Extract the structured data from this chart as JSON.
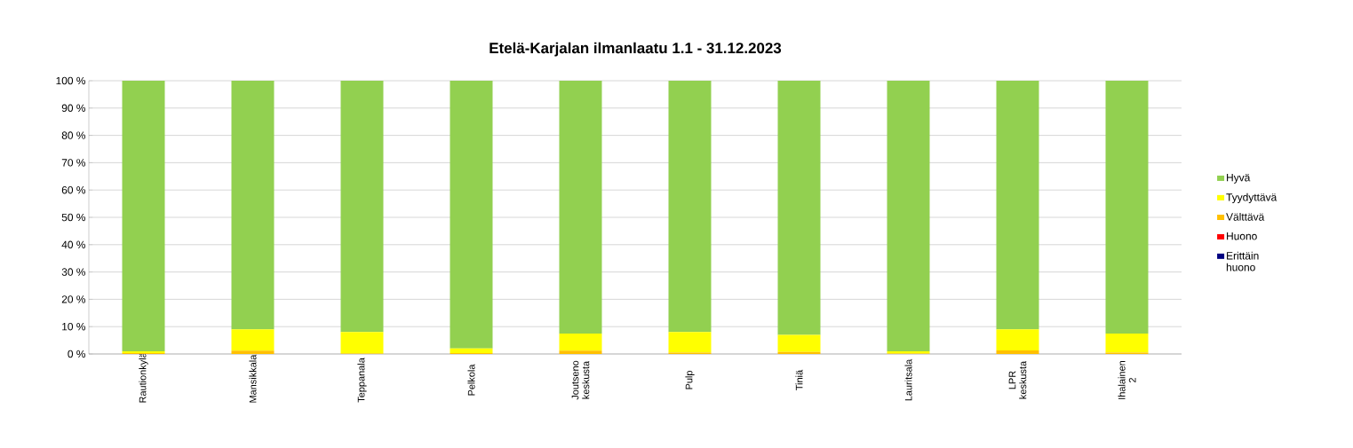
{
  "chart_data": {
    "type": "bar",
    "stacked": true,
    "title": "Etelä-Karjalan ilmanlaatu 1.1 - 31.12.2023",
    "categories": [
      "Rautionkylä",
      "Mansikkala",
      "Teppanala",
      "Pelkola",
      "Joutseno keskusta",
      "Pulp",
      "Tiniä",
      "Lauritsala",
      "LPR keskusta",
      "Ihalainen 2"
    ],
    "series": [
      {
        "name": "Erittäin huono",
        "color": "#000080",
        "values": [
          0,
          0,
          0,
          0,
          0,
          0,
          0,
          0,
          0,
          0
        ]
      },
      {
        "name": "Huono",
        "color": "#ff0000",
        "values": [
          0,
          0,
          0,
          0,
          0,
          0,
          0,
          0,
          0,
          0
        ]
      },
      {
        "name": "Välttävä",
        "color": "#ffc000",
        "values": [
          0.3,
          1.2,
          0.2,
          0.3,
          1.2,
          0.5,
          0.7,
          0.2,
          1.3,
          0.5
        ]
      },
      {
        "name": "Tyydyttävä",
        "color": "#ffff00",
        "values": [
          0.7,
          7.8,
          7.8,
          1.7,
          6.3,
          7.5,
          6.3,
          0.8,
          7.7,
          7.0
        ]
      },
      {
        "name": "Hyvä",
        "color": "#92d050",
        "values": [
          99,
          91,
          92,
          98,
          92.5,
          92,
          93,
          99,
          91,
          92.5
        ]
      }
    ],
    "ylim": [
      0,
      100
    ],
    "yticks": [
      {
        "value": 0,
        "label": "0 %"
      },
      {
        "value": 10,
        "label": "10 %"
      },
      {
        "value": 20,
        "label": "20 %"
      },
      {
        "value": 30,
        "label": "30 %"
      },
      {
        "value": 40,
        "label": "40 %"
      },
      {
        "value": 50,
        "label": "50 %"
      },
      {
        "value": 60,
        "label": "60 %"
      },
      {
        "value": 70,
        "label": "70 %"
      },
      {
        "value": 80,
        "label": "80 %"
      },
      {
        "value": 90,
        "label": "90 %"
      },
      {
        "value": 100,
        "label": "100 %"
      }
    ],
    "grid": "y",
    "legend": "right"
  }
}
